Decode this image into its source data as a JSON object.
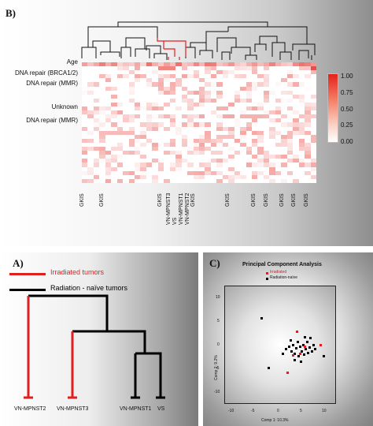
{
  "panel_b": {
    "letter": "B)",
    "row_labels": [
      "Age",
      "DNA repair (BRCA1/2)",
      "DNA repair (MMR)",
      "Unknown",
      "DNA repair (MMR)"
    ],
    "column_labels": [
      "GKIS",
      "GKIS",
      "GKIS",
      "VN-MPNST3",
      "VS",
      "VN-MPNST1",
      "VN-MPNST2",
      "GKIS",
      "GKIS",
      "GKIS",
      "GKIS",
      "GKIS",
      "GKIS",
      "GKIS"
    ],
    "color_scale": {
      "ticks": [
        "1.00",
        "0.75",
        "0.50",
        "0.25",
        "0.00"
      ],
      "high": "#e4221b",
      "low": "#ffffff"
    }
  },
  "panel_a": {
    "letter": "A)",
    "legend": [
      {
        "label": "Irradiated tumors",
        "color": "#e02020"
      },
      {
        "label": "Radiation - naïve tumors",
        "color": "#000000"
      }
    ],
    "leaves": [
      "VN-MPNST2",
      "VN-MPNST3",
      "VN-MPNST1",
      "VS"
    ]
  },
  "panel_c": {
    "letter": "C)",
    "title": "Principal Component Analysis",
    "legend": [
      {
        "label": "Irradiated",
        "color": "#e02020"
      },
      {
        "label": "Radiation-naïve",
        "color": "#000000"
      }
    ],
    "xlabel": "Comp 1: 10.3%",
    "ylabel": "Comp 2: 9.2%",
    "x_ticks": [
      "-10",
      "-5",
      "0",
      "5",
      "10"
    ],
    "y_ticks": [
      "10",
      "5",
      "0",
      "-5",
      "-10"
    ]
  }
}
